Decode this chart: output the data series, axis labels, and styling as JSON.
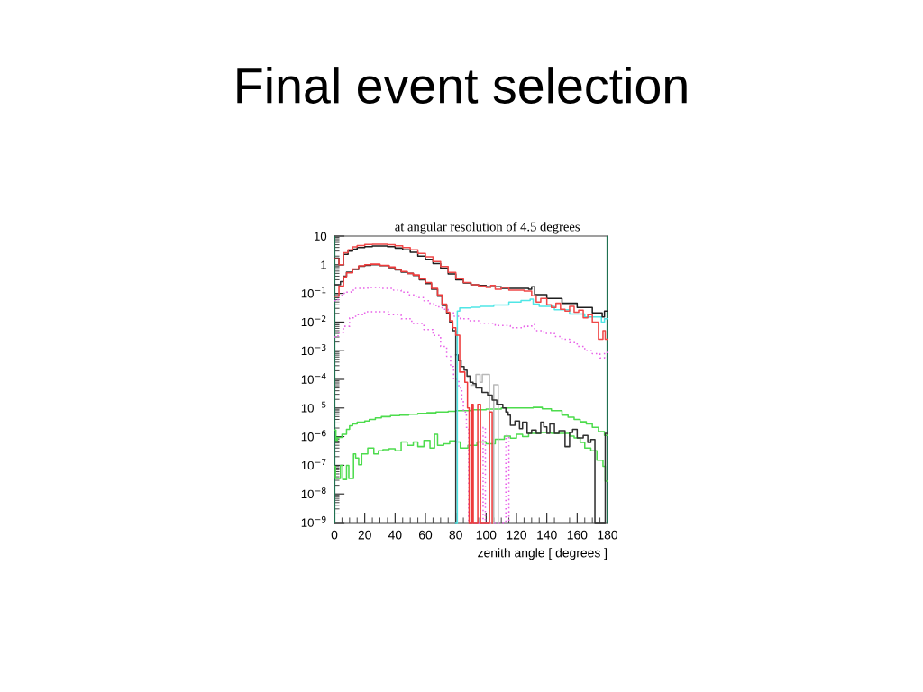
{
  "chart_data": {
    "type": "step",
    "title": "Final event selection",
    "subtitle": "at angular resolution of 4.5 degrees",
    "xlabel": "zenith angle [ degrees ]",
    "xlim": [
      0,
      180
    ],
    "xticks": [
      0,
      20,
      40,
      60,
      80,
      100,
      120,
      140,
      160,
      180
    ],
    "ylim": [
      1e-09,
      10
    ],
    "yticks": [
      {
        "value": 1e-09,
        "label": "10$^{−9}$"
      },
      {
        "value": 1e-08,
        "label": "10$^{−8}$"
      },
      {
        "value": 1e-07,
        "label": "10$^{−7}$"
      },
      {
        "value": 1e-06,
        "label": "10$^{−6}$"
      },
      {
        "value": 1e-05,
        "label": "10$^{−5}$"
      },
      {
        "value": 0.0001,
        "label": "10$^{−4}$"
      },
      {
        "value": 0.001,
        "label": "10$^{−3}$"
      },
      {
        "value": 0.01,
        "label": "10$^{−2}$"
      },
      {
        "value": 0.1,
        "label": "10$^{−1}$"
      },
      1,
      10
    ],
    "log": "y",
    "line_style": "solid",
    "series": [
      {
        "color": "#4ddc4d",
        "x": [
          0,
          1,
          2,
          5,
          8,
          10,
          12,
          15,
          20,
          23,
          27,
          31,
          37,
          43,
          49,
          55,
          61,
          67,
          75,
          80,
          90,
          100,
          110,
          120,
          131,
          137,
          143,
          150,
          154,
          158,
          162,
          166,
          170,
          174,
          178,
          180
        ],
        "values": [
          1.7e-06,
          7.4e-07,
          9.3e-07,
          1.2e-06,
          1.8e-06,
          2.4e-06,
          2.8e-06,
          3.2e-06,
          3.5e-06,
          4e-06,
          4.5e-06,
          5e-06,
          5.4e-06,
          5.6e-06,
          6e-06,
          6.5e-06,
          6.8e-06,
          7.2e-06,
          7.6e-06,
          8.1e-06,
          8.7e-06,
          9.1e-06,
          1e-05,
          1e-05,
          1.05e-05,
          9.3e-06,
          8.1e-06,
          5.6e-06,
          4.8e-06,
          4e-06,
          3.3e-06,
          2.8e-06,
          2.1e-06,
          1.5e-06,
          1.1e-06,
          1.1e-06
        ]
      },
      {
        "color": "#4ddc4d",
        "x": [
          0,
          0.7,
          4,
          5.5,
          8,
          9.5,
          12.6,
          14,
          16,
          18,
          22,
          26,
          29,
          32,
          36,
          40,
          44,
          48,
          52,
          55,
          59,
          63,
          66,
          68,
          72,
          76,
          80,
          83,
          88,
          94,
          100,
          106,
          112,
          116,
          120,
          124,
          128,
          136,
          143,
          150,
          155,
          158,
          162,
          165,
          169,
          173,
          177,
          178.5,
          180
        ],
        "values": [
          9.3e-08,
          3.5e-08,
          1e-07,
          3.2e-08,
          1e-07,
          3.5e-08,
          2.5e-07,
          1.8e-07,
          1.05e-07,
          2.5e-07,
          4e-07,
          2.5e-07,
          3.2e-07,
          3.5e-07,
          3.8e-07,
          3.2e-07,
          6.5e-07,
          5e-07,
          6.5e-07,
          4.5e-07,
          7.4e-07,
          4e-07,
          1.2e-06,
          5e-07,
          5.6e-07,
          7.1e-07,
          6.5e-07,
          4e-07,
          5e-07,
          6.5e-07,
          5.6e-07,
          8.1e-07,
          1.05e-06,
          8.9e-07,
          1.2e-06,
          1e-06,
          1.3e-06,
          1.4e-06,
          1.3e-06,
          1.3e-06,
          1.05e-06,
          9.1e-07,
          6.3e-07,
          4e-07,
          3.2e-07,
          1.5e-07,
          9.3e-08,
          2.8e-08,
          2.8e-08
        ]
      },
      {
        "color": "#e860e8",
        "line_style": "dotted",
        "x": [
          0,
          2.4,
          5,
          8,
          11,
          14,
          22,
          31,
          39,
          44,
          49,
          54,
          59,
          63,
          67,
          71,
          75,
          79,
          83,
          89,
          96,
          106,
          116,
          125,
          130,
          132,
          138,
          145,
          150,
          155,
          160,
          165,
          170,
          175,
          178,
          180
        ],
        "values": [
          0.055,
          0.079,
          0.1,
          0.11,
          0.13,
          0.15,
          0.16,
          0.15,
          0.13,
          0.11,
          0.089,
          0.071,
          0.055,
          0.044,
          0.034,
          0.028,
          0.021,
          0.016,
          0.013,
          0.011,
          0.0091,
          0.0076,
          0.0063,
          0.0071,
          0.0081,
          0.005,
          0.004,
          0.0031,
          0.0025,
          0.0019,
          0.0014,
          0.001,
          0.00079,
          0.00056,
          0.00087,
          0.00087
        ]
      },
      {
        "color": "#e860e8",
        "line_style": "dotted",
        "x": [
          0,
          2.4,
          6,
          10,
          14,
          20,
          28,
          36,
          44,
          51,
          59,
          65,
          70,
          74,
          76.6,
          78.6,
          82,
          84,
          85,
          87,
          88.5,
          98,
          99.5,
          113,
          115
        ],
        "values": [
          0.003,
          0.0043,
          0.0071,
          0.014,
          0.018,
          0.023,
          0.023,
          0.018,
          0.013,
          0.0089,
          0.0055,
          0.0034,
          0.0014,
          0.00063,
          0.00028,
          0.0001,
          5e-05,
          2e-05,
          7.2e-06,
          2.1e-06,
          1e-09,
          2.1e-06,
          1e-09,
          1.1e-06,
          1e-09
        ]
      },
      {
        "color": "#b8b8b8",
        "x": [
          90,
          93.3,
          96,
          97.5,
          102.2,
          105,
          108
        ],
        "values": [
          6.3e-05,
          0.00015,
          7.9e-05,
          0.00015,
          1e-09,
          6.5e-05,
          1e-09
        ]
      },
      {
        "color": "#303030",
        "x": [
          0,
          4,
          6,
          8,
          12,
          16,
          20,
          24,
          30,
          36,
          40,
          44,
          48,
          52,
          56,
          60,
          64,
          68,
          71,
          74,
          76,
          78,
          80
        ],
        "values": [
          0.2,
          0.26,
          0.4,
          0.55,
          0.69,
          0.89,
          0.95,
          1.0,
          0.93,
          0.79,
          0.66,
          0.55,
          0.5,
          0.42,
          0.3,
          0.22,
          0.14,
          0.079,
          0.038,
          0.02,
          0.01,
          0.005,
          1e-09
        ]
      },
      {
        "color": "#303030",
        "x": [
          80,
          81.5,
          83.5,
          85.5,
          87.4,
          89.4,
          91.4,
          93.3,
          97.3,
          101,
          104,
          107,
          111,
          113,
          114.5,
          116,
          119,
          122,
          124,
          127,
          130,
          133,
          136,
          138,
          140,
          142,
          145,
          148,
          152,
          155,
          157,
          160,
          164,
          167,
          169,
          171.7,
          178.5,
          180
        ],
        "values": [
          0.00072,
          0.00045,
          0.00028,
          0.00021,
          0.00013,
          7.9e-05,
          7.1e-05,
          5e-05,
          3.5e-05,
          2.8e-05,
          1.9e-05,
          1.35e-05,
          1e-05,
          7.2e-06,
          5.6e-06,
          2.5e-06,
          3.5e-06,
          1.9e-06,
          3.2e-06,
          1.3e-06,
          1.7e-06,
          1.3e-06,
          3.2e-06,
          2.2e-06,
          1.3e-06,
          2.8e-06,
          1.3e-06,
          1.6e-06,
          4.5e-07,
          1.4e-06,
          1.8e-06,
          9.1e-07,
          1.1e-06,
          6.3e-07,
          7.9e-07,
          1e-09,
          1.3e-06,
          1.3e-06
        ]
      },
      {
        "color": "#50e6e6",
        "x": [
          80,
          81,
          82.6,
          90,
          96,
          105,
          115,
          123,
          129,
          131,
          135,
          145,
          155,
          165,
          176,
          178,
          180
        ],
        "values": [
          1e-09,
          0.024,
          0.031,
          0.033,
          0.035,
          0.039,
          0.05,
          0.056,
          0.063,
          0.042,
          0.035,
          0.027,
          0.019,
          0.015,
          0.01,
          0.013,
          0.013
        ]
      },
      {
        "color": "#ee3b3b",
        "x": [
          0,
          3,
          6,
          8,
          12,
          16,
          20,
          24,
          30,
          36,
          40,
          44,
          48,
          52,
          56,
          60,
          64,
          68,
          71,
          74,
          76,
          78,
          80,
          82.6,
          86,
          87.7,
          88.8,
          90.6,
          91.5,
          94.5,
          96.3,
          102.2,
          104
        ],
        "values": [
          0.079,
          0.18,
          0.38,
          0.52,
          0.71,
          0.91,
          1.0,
          1.05,
          0.95,
          0.83,
          0.69,
          0.58,
          0.5,
          0.44,
          0.32,
          0.24,
          0.15,
          0.089,
          0.042,
          0.022,
          0.011,
          0.0063,
          0.0035,
          0.00018,
          7.9e-05,
          1e-05,
          1e-09,
          1.35e-05,
          1e-09,
          1.35e-05,
          1e-09,
          7.2e-06,
          1e-09
        ]
      },
      {
        "color": "#1e1e1e",
        "x": [
          0,
          3,
          6,
          9,
          12,
          15,
          20,
          25,
          30,
          35,
          40,
          45,
          50,
          55,
          60,
          65,
          70,
          75,
          80,
          85,
          90,
          95,
          100,
          110,
          120,
          128,
          130,
          132,
          140,
          150,
          160,
          170,
          176.5,
          178,
          180
        ],
        "values": [
          1.7,
          1.0,
          2.3,
          3.0,
          3.5,
          4.0,
          4.3,
          4.5,
          4.5,
          4.3,
          3.8,
          3.3,
          2.7,
          2.0,
          1.5,
          1.1,
          0.76,
          0.48,
          0.3,
          0.23,
          0.2,
          0.19,
          0.17,
          0.15,
          0.15,
          0.14,
          0.17,
          0.091,
          0.066,
          0.045,
          0.032,
          0.021,
          0.015,
          0.024,
          0.024
        ]
      },
      {
        "color": "#f04848",
        "x": [
          0,
          3,
          6,
          9,
          12,
          15,
          20,
          25,
          30,
          35,
          40,
          45,
          50,
          55,
          60,
          65,
          70,
          75,
          80,
          85,
          90,
          95,
          100,
          103,
          106,
          110,
          115,
          120,
          125,
          130,
          133,
          136,
          140,
          143,
          146,
          149,
          152,
          155,
          158,
          161,
          164,
          167,
          170,
          174,
          177,
          178.5,
          180
        ],
        "values": [
          1.6,
          1.0,
          2.6,
          3.3,
          4.2,
          4.7,
          5.1,
          5.2,
          5.2,
          5.0,
          4.6,
          4.0,
          3.3,
          2.5,
          1.9,
          1.3,
          0.87,
          0.54,
          0.33,
          0.24,
          0.2,
          0.18,
          0.16,
          0.19,
          0.14,
          0.16,
          0.13,
          0.13,
          0.12,
          0.083,
          0.05,
          0.066,
          0.04,
          0.032,
          0.045,
          0.028,
          0.024,
          0.035,
          0.022,
          0.026,
          0.014,
          0.018,
          0.01,
          0.0025,
          0.005,
          0.0025,
          0.0025
        ]
      }
    ],
    "ref_lines": [
      {
        "axis": "x",
        "value": 0,
        "color": "#1f7050"
      },
      {
        "axis": "x",
        "value": 180,
        "color": "#1f7050"
      }
    ]
  }
}
